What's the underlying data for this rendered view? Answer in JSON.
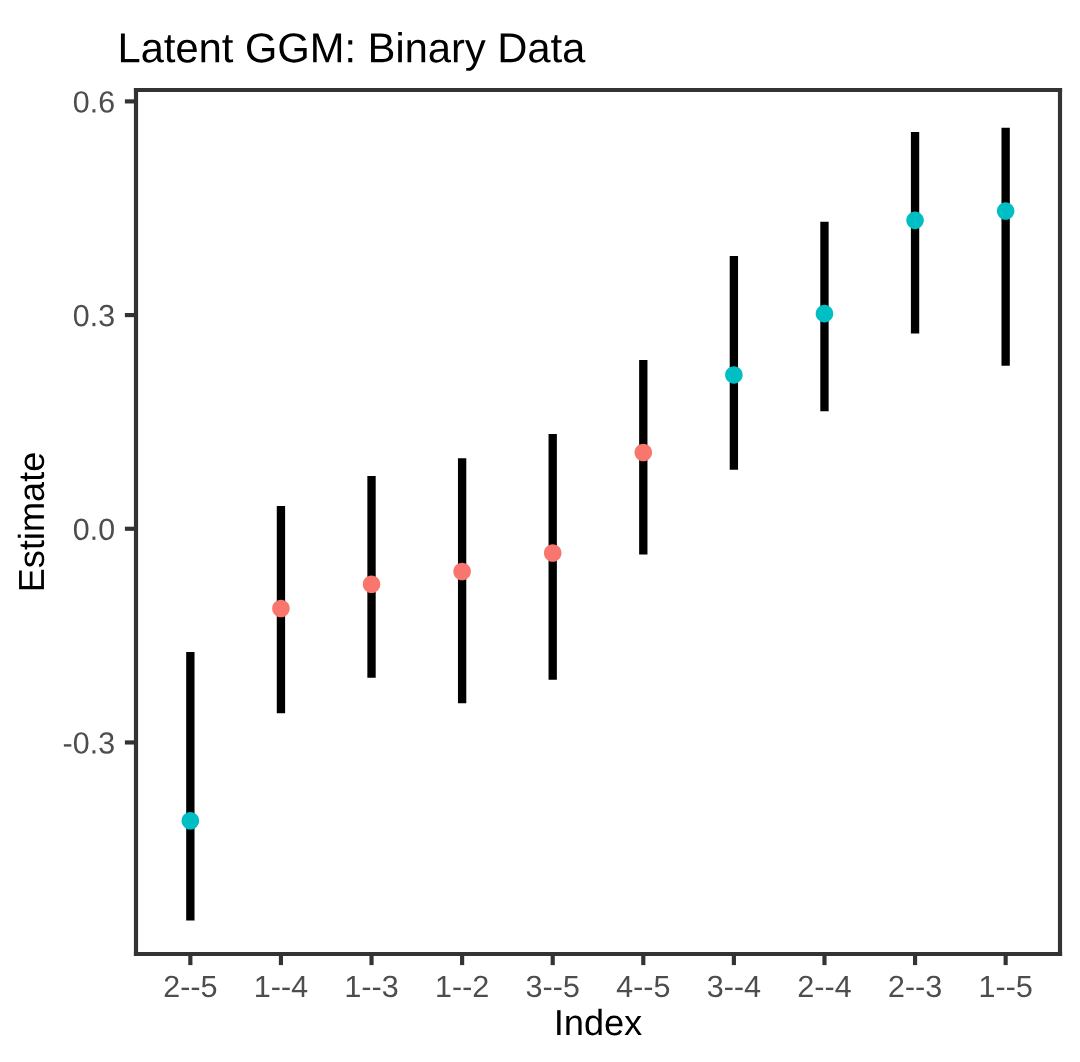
{
  "chart_data": {
    "type": "scatter",
    "title": "Latent GGM: Binary Data",
    "xlabel": "Index",
    "ylabel": "Estimate",
    "categories": [
      "2--5",
      "1--4",
      "1--3",
      "1--2",
      "3--5",
      "4--5",
      "3--4",
      "2--4",
      "2--3",
      "1--5"
    ],
    "values": [
      -0.41,
      -0.112,
      -0.078,
      -0.06,
      -0.034,
      0.107,
      0.216,
      0.302,
      0.433,
      0.446
    ],
    "colors": [
      "#00bfc4",
      "#f8766d",
      "#f8766d",
      "#f8766d",
      "#f8766d",
      "#f8766d",
      "#00bfc4",
      "#00bfc4",
      "#00bfc4",
      "#00bfc4"
    ],
    "errors": [
      [
        -0.55,
        -0.173
      ],
      [
        -0.259,
        0.032
      ],
      [
        -0.209,
        0.074
      ],
      [
        -0.245,
        0.099
      ],
      [
        -0.212,
        0.133
      ],
      [
        -0.036,
        0.237
      ],
      [
        0.083,
        0.383
      ],
      [
        0.165,
        0.431
      ],
      [
        0.274,
        0.557
      ],
      [
        0.229,
        0.563
      ]
    ],
    "ylim": [
      -0.597,
      0.616
    ],
    "yticks": [
      {
        "value": -0.3,
        "label": "-0.3"
      },
      {
        "value": 0.0,
        "label": "0.0"
      },
      {
        "value": 0.3,
        "label": "0.3"
      },
      {
        "value": 0.6,
        "label": "0.6"
      }
    ],
    "grid": false,
    "marker": "circle"
  }
}
